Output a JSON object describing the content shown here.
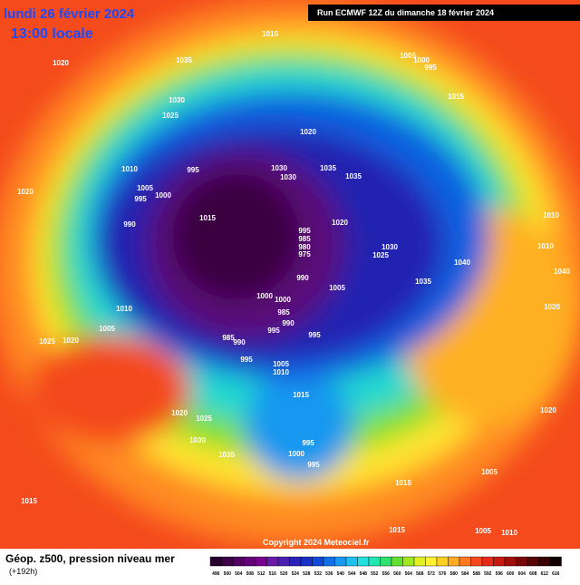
{
  "header": {
    "date": "lundi 26 février 2024",
    "time": "13:00 locale",
    "run": "Run ECMWF 12Z du dimanche 18 février 2024"
  },
  "isobars": [
    1015,
    1035,
    1020,
    1005,
    1000,
    995,
    1030,
    1025,
    1015,
    1020,
    995,
    1030,
    1035,
    1030,
    1035,
    1010,
    1020,
    1005,
    995,
    1000,
    1015,
    990,
    1020,
    995,
    985,
    980,
    975,
    1030,
    1025,
    1040,
    1035,
    1005,
    990,
    1000,
    1000,
    985,
    990,
    995,
    995,
    1010,
    1005,
    985,
    990,
    1025,
    1020,
    995,
    1005,
    1010,
    1015,
    1020,
    1025,
    1030,
    1035,
    995,
    1000,
    995,
    1005,
    1015,
    1015,
    1015,
    1005,
    1010,
    1010,
    1020,
    1040,
    1010,
    1020
  ],
  "footer": {
    "title": "Géop. z500, pression niveau mer",
    "lead": "(+192h)",
    "copyright": "Copyright 2024 Meteociel.fr"
  },
  "scale": [
    {
      "label": "496",
      "color": "#2a0030"
    },
    {
      "label": "500",
      "color": "#3c0048"
    },
    {
      "label": "504",
      "color": "#500060"
    },
    {
      "label": "508",
      "color": "#640078"
    },
    {
      "label": "512",
      "color": "#780090"
    },
    {
      "label": "516",
      "color": "#6a1aa8"
    },
    {
      "label": "520",
      "color": "#4a20b0"
    },
    {
      "label": "524",
      "color": "#2a22b8"
    },
    {
      "label": "528",
      "color": "#1830c8"
    },
    {
      "label": "532",
      "color": "#1048d8"
    },
    {
      "label": "536",
      "color": "#1070e8"
    },
    {
      "label": "540",
      "color": "#1898f0"
    },
    {
      "label": "544",
      "color": "#20c0f0"
    },
    {
      "label": "548",
      "color": "#20e0e0"
    },
    {
      "label": "552",
      "color": "#20e8b0"
    },
    {
      "label": "556",
      "color": "#30e070"
    },
    {
      "label": "560",
      "color": "#60e030"
    },
    {
      "label": "564",
      "color": "#a0e820"
    },
    {
      "label": "568",
      "color": "#e0f020"
    },
    {
      "label": "572",
      "color": "#fff030"
    },
    {
      "label": "576",
      "color": "#ffd020"
    },
    {
      "label": "580",
      "color": "#ffa820"
    },
    {
      "label": "584",
      "color": "#ff7820"
    },
    {
      "label": "588",
      "color": "#f84820"
    },
    {
      "label": "592",
      "color": "#e82818"
    },
    {
      "label": "596",
      "color": "#c81810"
    },
    {
      "label": "600",
      "color": "#a01008"
    },
    {
      "label": "604",
      "color": "#780808"
    },
    {
      "label": "608",
      "color": "#580404"
    },
    {
      "label": "612",
      "color": "#380202"
    },
    {
      "label": "616",
      "color": "#100000"
    }
  ]
}
